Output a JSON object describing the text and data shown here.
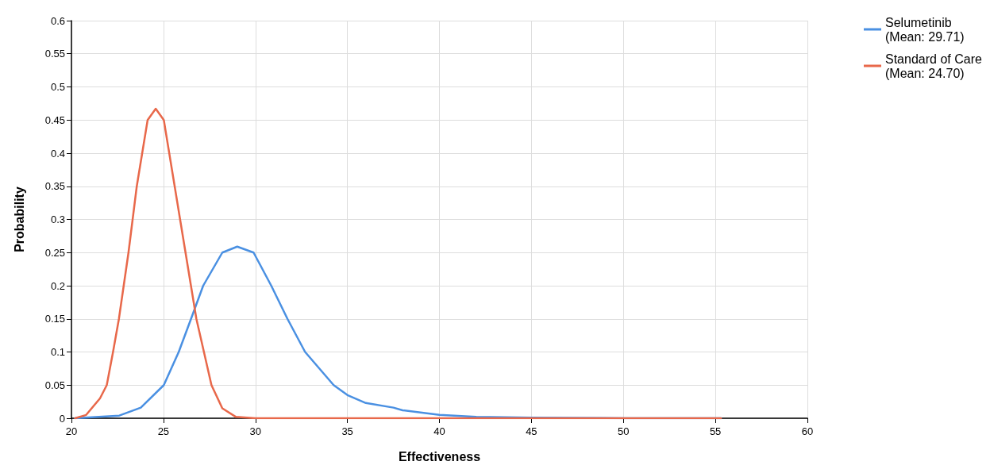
{
  "chart_data": {
    "type": "line",
    "xlabel": "Effectiveness",
    "ylabel": "Probability",
    "xlim": [
      20,
      60
    ],
    "ylim": [
      0,
      0.6
    ],
    "xticks": [
      20,
      25,
      30,
      35,
      40,
      45,
      50,
      55,
      60
    ],
    "yticks": [
      0,
      0.05,
      0.1,
      0.15,
      0.2,
      0.25,
      0.3,
      0.35,
      0.4,
      0.45,
      0.5,
      0.55,
      0.6
    ],
    "grid": true,
    "legend": "top right",
    "marker": "none",
    "line_style": "solid",
    "series": [
      {
        "name": "Selumetinib\n(Mean: 29.71)",
        "color": "#4a90e2",
        "x": [
          20.2,
          22.6,
          23.77,
          25.02,
          25.83,
          26.5,
          27.16,
          28.2,
          29.01,
          29.9,
          30.86,
          31.74,
          32.7,
          34.25,
          35,
          36,
          37.5,
          38,
          40,
          42,
          45,
          50,
          55.3
        ],
        "values": [
          0,
          0.004,
          0.016,
          0.05,
          0.1,
          0.15,
          0.2,
          0.25,
          0.259,
          0.25,
          0.2,
          0.15,
          0.1,
          0.05,
          0.035,
          0.023,
          0.016,
          0.012,
          0.005,
          0.002,
          0.001,
          0,
          0
        ]
      },
      {
        "name": "Standard of Care\n(Mean: 24.70)",
        "color": "#e8684a",
        "x": [
          20.2,
          20.8,
          21.55,
          21.92,
          22.26,
          22.58,
          23.1,
          23.55,
          24.14,
          24.58,
          25.02,
          25.61,
          26.2,
          26.79,
          27.61,
          28.2,
          28.94,
          30,
          40,
          55.3
        ],
        "values": [
          0,
          0.005,
          0.03,
          0.05,
          0.1,
          0.15,
          0.25,
          0.35,
          0.45,
          0.467,
          0.45,
          0.35,
          0.25,
          0.15,
          0.05,
          0.015,
          0.002,
          0,
          0,
          0
        ]
      }
    ]
  }
}
